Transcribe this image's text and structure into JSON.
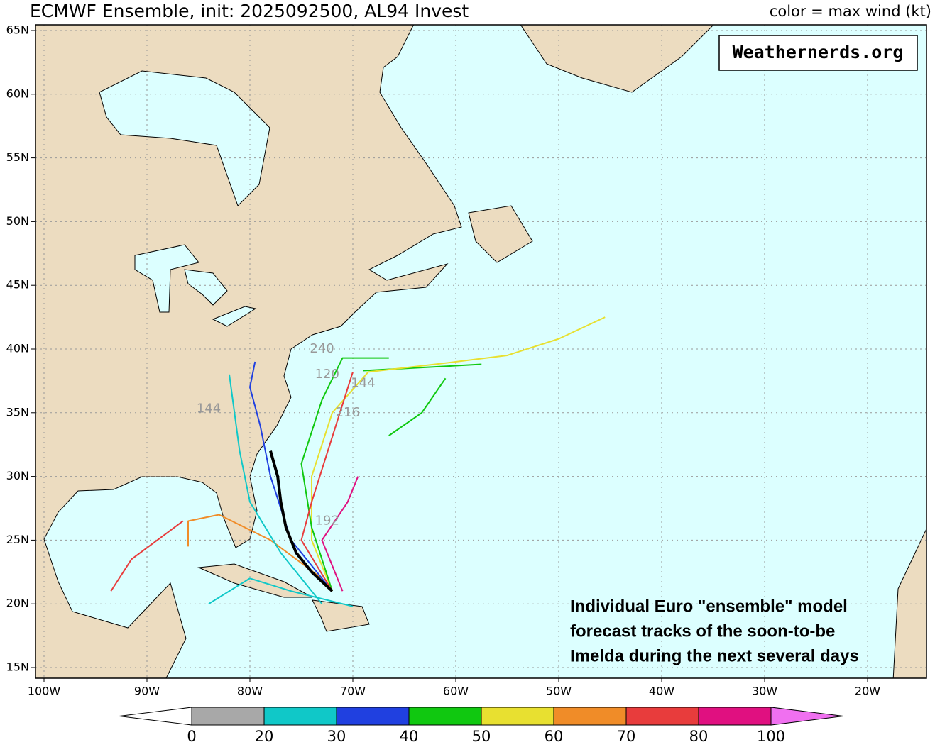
{
  "header": {
    "title": "ECMWF Ensemble, init: 2025092500, AL94 Invest",
    "legend_title": "color = max wind (kt)"
  },
  "watermark": "Weathernerds.org",
  "annotation": [
    "Individual Euro \"ensemble\" model",
    "forecast tracks of the soon-to-be",
    "Imelda during the next several days"
  ],
  "axes": {
    "lat_ticks": [
      {
        "value": 15,
        "label": "15N"
      },
      {
        "value": 20,
        "label": "20N"
      },
      {
        "value": 25,
        "label": "25N"
      },
      {
        "value": 30,
        "label": "30N"
      },
      {
        "value": 35,
        "label": "35N"
      },
      {
        "value": 40,
        "label": "40N"
      },
      {
        "value": 45,
        "label": "45N"
      },
      {
        "value": 50,
        "label": "50N"
      },
      {
        "value": 55,
        "label": "55N"
      },
      {
        "value": 60,
        "label": "60N"
      },
      {
        "value": 65,
        "label": "65N"
      }
    ],
    "lon_ticks": [
      {
        "value": -100,
        "label": "100W"
      },
      {
        "value": -90,
        "label": "90W"
      },
      {
        "value": -80,
        "label": "80W"
      },
      {
        "value": -70,
        "label": "70W"
      },
      {
        "value": -60,
        "label": "60W"
      },
      {
        "value": -50,
        "label": "50W"
      },
      {
        "value": -40,
        "label": "40W"
      },
      {
        "value": -30,
        "label": "30W"
      },
      {
        "value": -20,
        "label": "20W"
      }
    ]
  },
  "colorbar": {
    "bounds": [
      0,
      20,
      30,
      40,
      50,
      60,
      70,
      80,
      100
    ],
    "colors": [
      "#a8a8a8",
      "#10c8c8",
      "#2040e0",
      "#10c810",
      "#e8e030",
      "#f08c28",
      "#e83c3c",
      "#e01080"
    ],
    "under_color": "#ffffff",
    "over_color": "#f070f0"
  },
  "tracks": [
    {
      "color": "#10c810",
      "lat": [
        33.2,
        35,
        37.7
      ],
      "lon": [
        -66.5,
        -63.3,
        -61
      ]
    },
    {
      "color": "#10c810",
      "lat": [
        38.3,
        38.8
      ],
      "lon": [
        -69,
        -57.5
      ]
    },
    {
      "color": "#e8e030",
      "lat": [
        21,
        25,
        30,
        35,
        38.2,
        38.8,
        39.5,
        40.8,
        42.5
      ],
      "lon": [
        -72,
        -74,
        -74,
        -72,
        -68.5,
        -62,
        -55,
        -50,
        -45.5
      ]
    },
    {
      "color": "#f08c28",
      "lat": [
        22,
        25,
        27,
        26.5,
        24.5
      ],
      "lon": [
        -73,
        -78,
        -83,
        -86,
        -86
      ]
    },
    {
      "color": "#e83c3c",
      "lat": [
        21,
        23.5,
        25,
        26.5
      ],
      "lon": [
        -93.5,
        -91.5,
        -89,
        -86.5
      ]
    },
    {
      "color": "#2040e0",
      "lat": [
        21,
        25,
        30,
        34,
        37,
        39
      ],
      "lon": [
        -72,
        -76,
        -78,
        -79,
        -80,
        -79.5
      ]
    },
    {
      "color": "#e01080",
      "lat": [
        21,
        25,
        28,
        30
      ],
      "lon": [
        -71,
        -73,
        -70.5,
        -69.5
      ]
    },
    {
      "color": "#10c8c8",
      "lat": [
        20,
        24,
        28,
        32,
        35,
        38
      ],
      "lon": [
        -73,
        -77,
        -80,
        -81,
        -81.5,
        -82
      ]
    },
    {
      "color": "#10c810",
      "lat": [
        21,
        26,
        31,
        36,
        39.3,
        39.3
      ],
      "lon": [
        -72,
        -74,
        -75,
        -73,
        -71,
        -66.5
      ]
    },
    {
      "color": "#10c8c8",
      "lat": [
        19.8,
        21,
        22,
        20
      ],
      "lon": [
        -70,
        -76,
        -80,
        -84
      ]
    },
    {
      "color": "#e83c3c",
      "lat": [
        21,
        25,
        28,
        38.2
      ],
      "lon": [
        -72,
        -75,
        -74,
        -70
      ]
    },
    {
      "color": "#000000",
      "lat": [
        21,
        22.5,
        24,
        26,
        28,
        30,
        32
      ],
      "lon": [
        -72,
        -74,
        -75.5,
        -76.5,
        -77,
        -77.3,
        -78
      ]
    }
  ],
  "hour_labels": [
    {
      "text": "240",
      "lat": 40,
      "lon": -73
    },
    {
      "text": "120",
      "lat": 38,
      "lon": -72.5
    },
    {
      "text": "144",
      "lat": 37.3,
      "lon": -69
    },
    {
      "text": "216",
      "lat": 35,
      "lon": -70.5
    },
    {
      "text": "192",
      "lat": 26.5,
      "lon": -72.5
    },
    {
      "text": "144",
      "lat": 35.3,
      "lon": -84
    }
  ]
}
